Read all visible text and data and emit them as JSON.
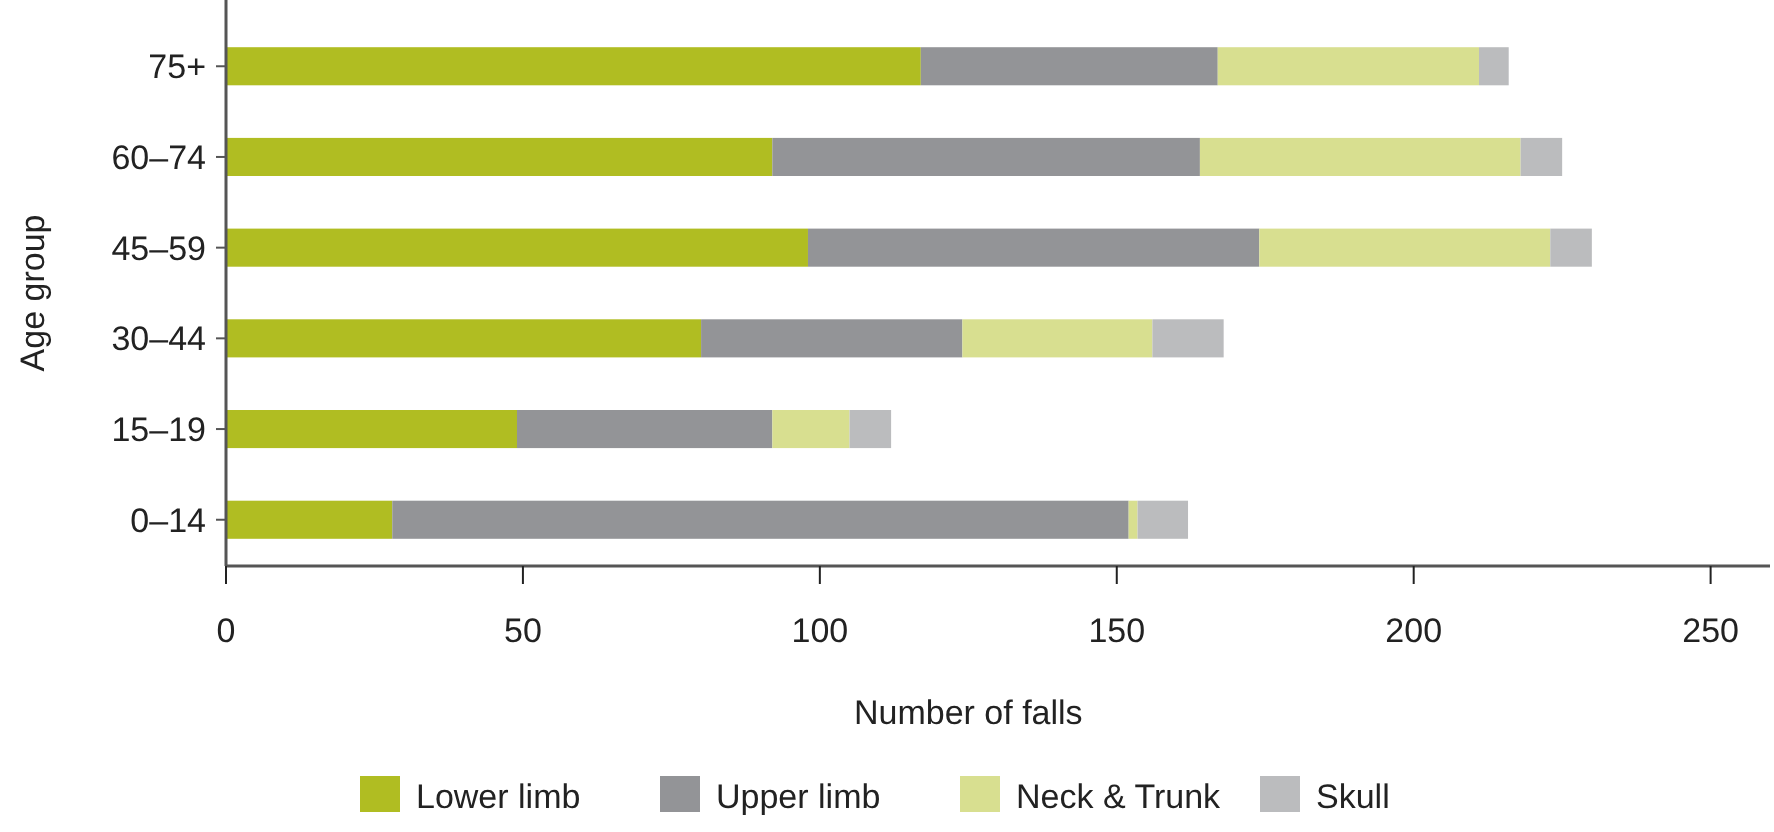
{
  "chart_data": {
    "type": "bar",
    "orientation": "horizontal",
    "stacked": true,
    "xlabel": "Number of falls",
    "ylabel": "Age group",
    "categories": [
      "75+",
      "60–74",
      "45–59",
      "30–44",
      "15–19",
      "0–14"
    ],
    "series": [
      {
        "name": "Lower limb",
        "color": "#b0bd22",
        "values": [
          117,
          92,
          98,
          80,
          49,
          28
        ]
      },
      {
        "name": "Upper limb",
        "color": "#939497",
        "values": [
          50,
          72,
          76,
          44,
          43,
          124
        ]
      },
      {
        "name": "Neck & Trunk",
        "color": "#d8df90",
        "values": [
          44,
          54,
          49,
          32,
          13,
          1.5
        ]
      },
      {
        "name": "Skull",
        "color": "#bbbcbe",
        "values": [
          5,
          7,
          7,
          12,
          7,
          8.5
        ]
      }
    ],
    "xlim": [
      0,
      260
    ],
    "xticks": [
      0,
      50,
      100,
      150,
      200,
      250
    ],
    "grid": false,
    "legend": "bottom"
  }
}
